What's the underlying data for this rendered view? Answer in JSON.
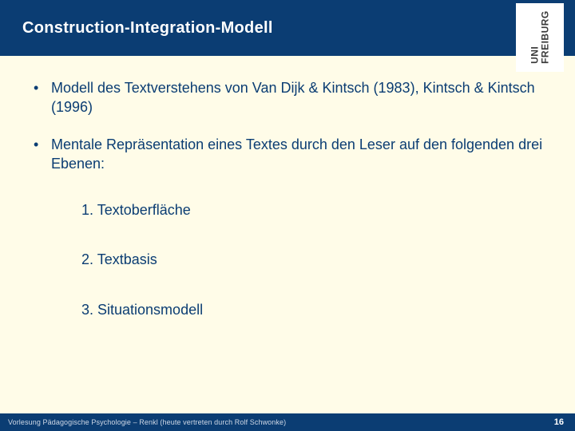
{
  "header": {
    "title": "Construction-Integration-Modell",
    "bg_color": "#0b3d73",
    "title_color": "#ffffff",
    "title_fontsize": 20
  },
  "logo": {
    "line1": "UNI",
    "line2": "FREIBURG",
    "bg_color": "#ffffff",
    "text_color": "#3a3a3a"
  },
  "body": {
    "bg_color": "#fffce8",
    "text_color": "#0b3d73",
    "text_fontsize": 18,
    "bullets": [
      "Modell des Textverstehens von Van Dijk & Kintsch (1983), Kintsch & Kintsch (1996)",
      "Mentale Repräsentation eines Textes durch den Leser auf den folgenden drei Ebenen:"
    ],
    "numbered": [
      "1. Textoberfläche",
      "2. Textbasis",
      "3. Situationsmodell"
    ]
  },
  "footer": {
    "text": "Vorlesung Pädagogische Psychologie – Renkl (heute vertreten durch Rolf Schwonke)",
    "page": "16",
    "bg_color": "#0b3d73",
    "text_color": "#cfd8e6",
    "page_color": "#ffffff"
  }
}
